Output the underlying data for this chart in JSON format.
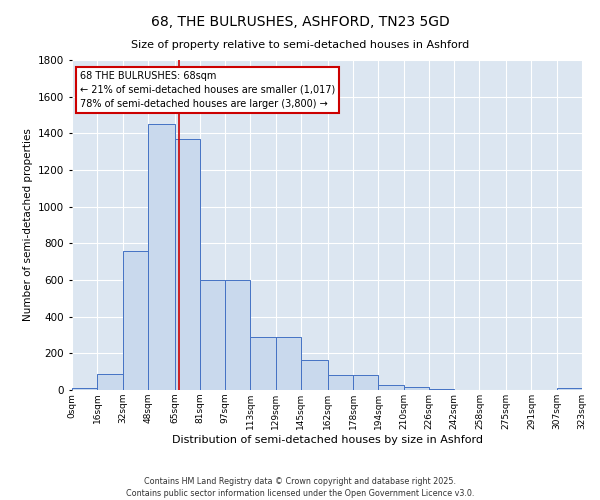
{
  "title": "68, THE BULRUSHES, ASHFORD, TN23 5GD",
  "subtitle": "Size of property relative to semi-detached houses in Ashford",
  "xlabel": "Distribution of semi-detached houses by size in Ashford",
  "ylabel": "Number of semi-detached properties",
  "footnote1": "Contains HM Land Registry data © Crown copyright and database right 2025.",
  "footnote2": "Contains public sector information licensed under the Open Government Licence v3.0.",
  "bar_left_edges": [
    0,
    16,
    32,
    48,
    65,
    81,
    97,
    113,
    129,
    145,
    162,
    178,
    194,
    210,
    226,
    242,
    258,
    275,
    291,
    307
  ],
  "bar_widths": [
    16,
    16,
    16,
    17,
    16,
    16,
    16,
    16,
    16,
    17,
    16,
    16,
    16,
    16,
    16,
    16,
    17,
    16,
    16,
    16
  ],
  "bar_heights": [
    10,
    90,
    760,
    1450,
    1370,
    600,
    600,
    290,
    290,
    165,
    80,
    80,
    25,
    15,
    5,
    0,
    0,
    0,
    0,
    10
  ],
  "bar_color": "#c9d9ed",
  "bar_edge_color": "#4472c4",
  "grid_color": "#ffffff",
  "bg_color": "#dce6f1",
  "vline_x": 68,
  "vline_color": "#cc0000",
  "annot_title": "68 THE BULRUSHES: 68sqm",
  "annot_line1": "← 21% of semi-detached houses are smaller (1,017)",
  "annot_line2": "78% of semi-detached houses are larger (3,800) →",
  "annot_box_color": "#ffffff",
  "annot_edge_color": "#cc0000",
  "ylim": [
    0,
    1800
  ],
  "xlim": [
    0,
    323
  ],
  "tick_labels": [
    "0sqm",
    "16sqm",
    "32sqm",
    "48sqm",
    "65sqm",
    "81sqm",
    "97sqm",
    "113sqm",
    "129sqm",
    "145sqm",
    "162sqm",
    "178sqm",
    "194sqm",
    "210sqm",
    "226sqm",
    "242sqm",
    "258sqm",
    "275sqm",
    "291sqm",
    "307sqm",
    "323sqm"
  ],
  "tick_positions": [
    0,
    16,
    32,
    48,
    65,
    81,
    97,
    113,
    129,
    145,
    162,
    178,
    194,
    210,
    226,
    242,
    258,
    275,
    291,
    307,
    323
  ]
}
